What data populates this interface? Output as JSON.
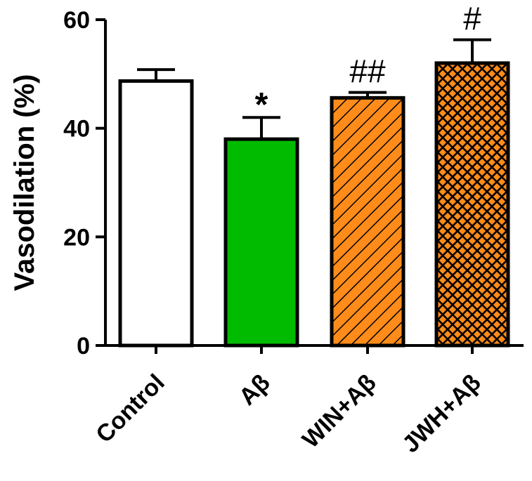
{
  "chart_data": {
    "type": "bar",
    "title": "",
    "xlabel": "",
    "ylabel": "Vasodilation (%)",
    "ylim": [
      0,
      60
    ],
    "yticks": [
      0,
      20,
      40,
      60
    ],
    "grid": false,
    "categories": [
      "Control",
      "Aβ",
      "WIN+Aβ",
      "JWH+Aβ"
    ],
    "values": [
      48.7,
      38.0,
      45.6,
      52.0
    ],
    "errors": [
      2.1,
      4.0,
      1.0,
      4.3
    ],
    "annotations": [
      "",
      "*",
      "##",
      "#"
    ],
    "fills": [
      "#ffffff",
      "#00bb00",
      "#ff8c1a",
      "#ff8c1a"
    ],
    "patterns": [
      "none",
      "none",
      "diagonal",
      "crosshatch"
    ]
  }
}
